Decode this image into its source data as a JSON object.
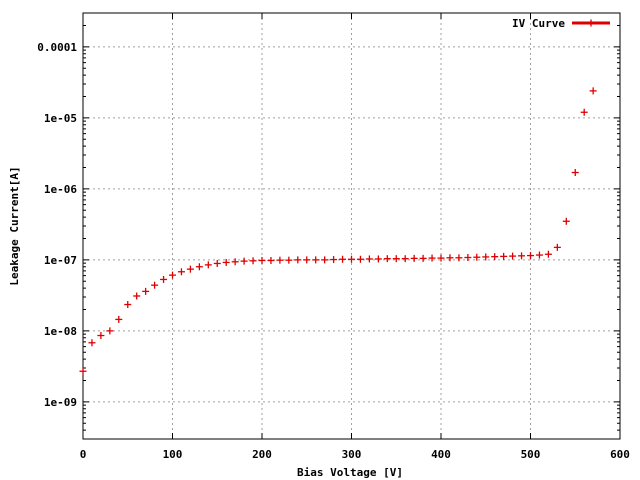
{
  "chart_data": {
    "type": "scatter",
    "title": "",
    "xlabel": "Bias Voltage [V]",
    "ylabel": "Leakage Current[A]",
    "xlim": [
      0,
      600
    ],
    "ylim": [
      3e-10,
      0.0003
    ],
    "yscale": "log",
    "grid": true,
    "legend_position": "top-right",
    "x_ticks": [
      {
        "value": 0,
        "label": "0"
      },
      {
        "value": 100,
        "label": "100"
      },
      {
        "value": 200,
        "label": "200"
      },
      {
        "value": 300,
        "label": "300"
      },
      {
        "value": 400,
        "label": "400"
      },
      {
        "value": 500,
        "label": "500"
      },
      {
        "value": 600,
        "label": "600"
      }
    ],
    "y_ticks": [
      {
        "value": 1e-09,
        "label": "1e-09"
      },
      {
        "value": 1e-08,
        "label": "1e-08"
      },
      {
        "value": 1e-07,
        "label": "1e-07"
      },
      {
        "value": 1e-06,
        "label": "1e-06"
      },
      {
        "value": 1e-05,
        "label": "1e-05"
      },
      {
        "value": 0.0001,
        "label": "0.0001"
      }
    ],
    "series": [
      {
        "name": "IV Curve",
        "color": "#dd0000",
        "marker": "plus",
        "x": [
          0,
          10,
          20,
          30,
          40,
          50,
          60,
          70,
          80,
          90,
          100,
          110,
          120,
          130,
          140,
          150,
          160,
          170,
          180,
          190,
          200,
          210,
          220,
          230,
          240,
          250,
          260,
          270,
          280,
          290,
          300,
          310,
          320,
          330,
          340,
          350,
          360,
          370,
          380,
          390,
          400,
          410,
          420,
          430,
          440,
          450,
          460,
          470,
          480,
          490,
          500,
          510,
          520,
          530,
          540,
          550,
          560,
          570
        ],
        "y": [
          2.7e-09,
          6.8e-09,
          8.6e-09,
          1e-08,
          1.45e-08,
          2.35e-08,
          3.1e-08,
          3.6e-08,
          4.4e-08,
          5.3e-08,
          6.1e-08,
          6.8e-08,
          7.4e-08,
          8e-08,
          8.5e-08,
          8.9e-08,
          9.2e-08,
          9.4e-08,
          9.6e-08,
          9.7e-08,
          9.8e-08,
          9.8e-08,
          9.9e-08,
          9.9e-08,
          1e-07,
          1e-07,
          1e-07,
          1e-07,
          1.01e-07,
          1.02e-07,
          1.02e-07,
          1.02e-07,
          1.03e-07,
          1.03e-07,
          1.04e-07,
          1.04e-07,
          1.04e-07,
          1.05e-07,
          1.05e-07,
          1.06e-07,
          1.06e-07,
          1.07e-07,
          1.07e-07,
          1.08e-07,
          1.09e-07,
          1.1e-07,
          1.11e-07,
          1.12e-07,
          1.13e-07,
          1.14e-07,
          1.15e-07,
          1.17e-07,
          1.2e-07,
          1.5e-07,
          3.5e-07,
          1.7e-06,
          1.2e-05,
          2.4e-05
        ]
      }
    ]
  }
}
